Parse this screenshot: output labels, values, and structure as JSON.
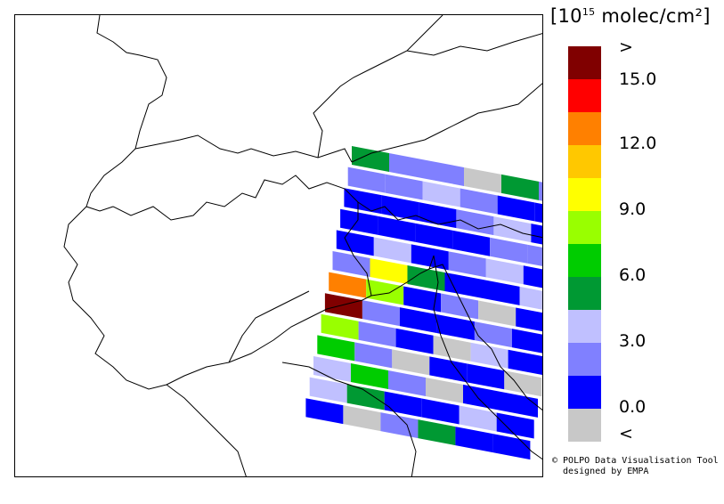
{
  "legend": {
    "title_prefix": "[10",
    "title_exponent": "15",
    "title_suffix": " molec/cm²]",
    "labels": [
      ">",
      "15.0",
      "12.0",
      "9.0",
      "6.0",
      "3.0",
      "0.0",
      "<"
    ],
    "bins": [
      {
        "color": "#800000"
      },
      {
        "color": "#ff0000"
      },
      {
        "color": "#ff8000"
      },
      {
        "color": "#ffc800"
      },
      {
        "color": "#ffff00"
      },
      {
        "color": "#99ff00"
      },
      {
        "color": "#00cc00"
      },
      {
        "color": "#009933"
      },
      {
        "color": "#c0c0ff"
      },
      {
        "color": "#8080ff"
      },
      {
        "color": "#0000ff"
      },
      {
        "color": "#c8c8c8"
      }
    ]
  },
  "credit": {
    "line1": "© POLPO Data Visualisation Tool",
    "line2": "  designed by EMPA"
  },
  "map": {
    "swath_rows": [
      [
        "darkgreen",
        "lightblue",
        "lightblue",
        "gray",
        "darkgreen",
        "lightblue"
      ],
      [
        "lightblue",
        "lightblue",
        "paleblue",
        "lightblue",
        "blue",
        "blue"
      ],
      [
        "blue",
        "blue",
        "blue",
        "lightblue",
        "paleblue",
        "blue"
      ],
      [
        "blue",
        "blue",
        "blue",
        "blue",
        "lightblue",
        "lightblue"
      ],
      [
        "blue",
        "paleblue",
        "blue",
        "lightblue",
        "paleblue",
        "blue"
      ],
      [
        "lightblue",
        "yellow",
        "darkgreen",
        "blue",
        "blue",
        "paleblue"
      ],
      [
        "orange",
        "lime",
        "blue",
        "lightblue",
        "gray",
        "blue"
      ],
      [
        "darkred",
        "lightblue",
        "blue",
        "blue",
        "lightblue",
        "blue"
      ],
      [
        "lime",
        "lightblue",
        "blue",
        "gray",
        "paleblue",
        "blue"
      ],
      [
        "green",
        "lightblue",
        "gray",
        "blue",
        "blue",
        "gray"
      ],
      [
        "paleblue",
        "green",
        "lightblue",
        "gray",
        "blue",
        "blue"
      ],
      [
        "paleblue",
        "darkgreen",
        "blue",
        "blue",
        "paleblue",
        "blue"
      ],
      [
        "blue",
        "gray",
        "lightblue",
        "darkgreen",
        "blue",
        "blue"
      ]
    ]
  }
}
